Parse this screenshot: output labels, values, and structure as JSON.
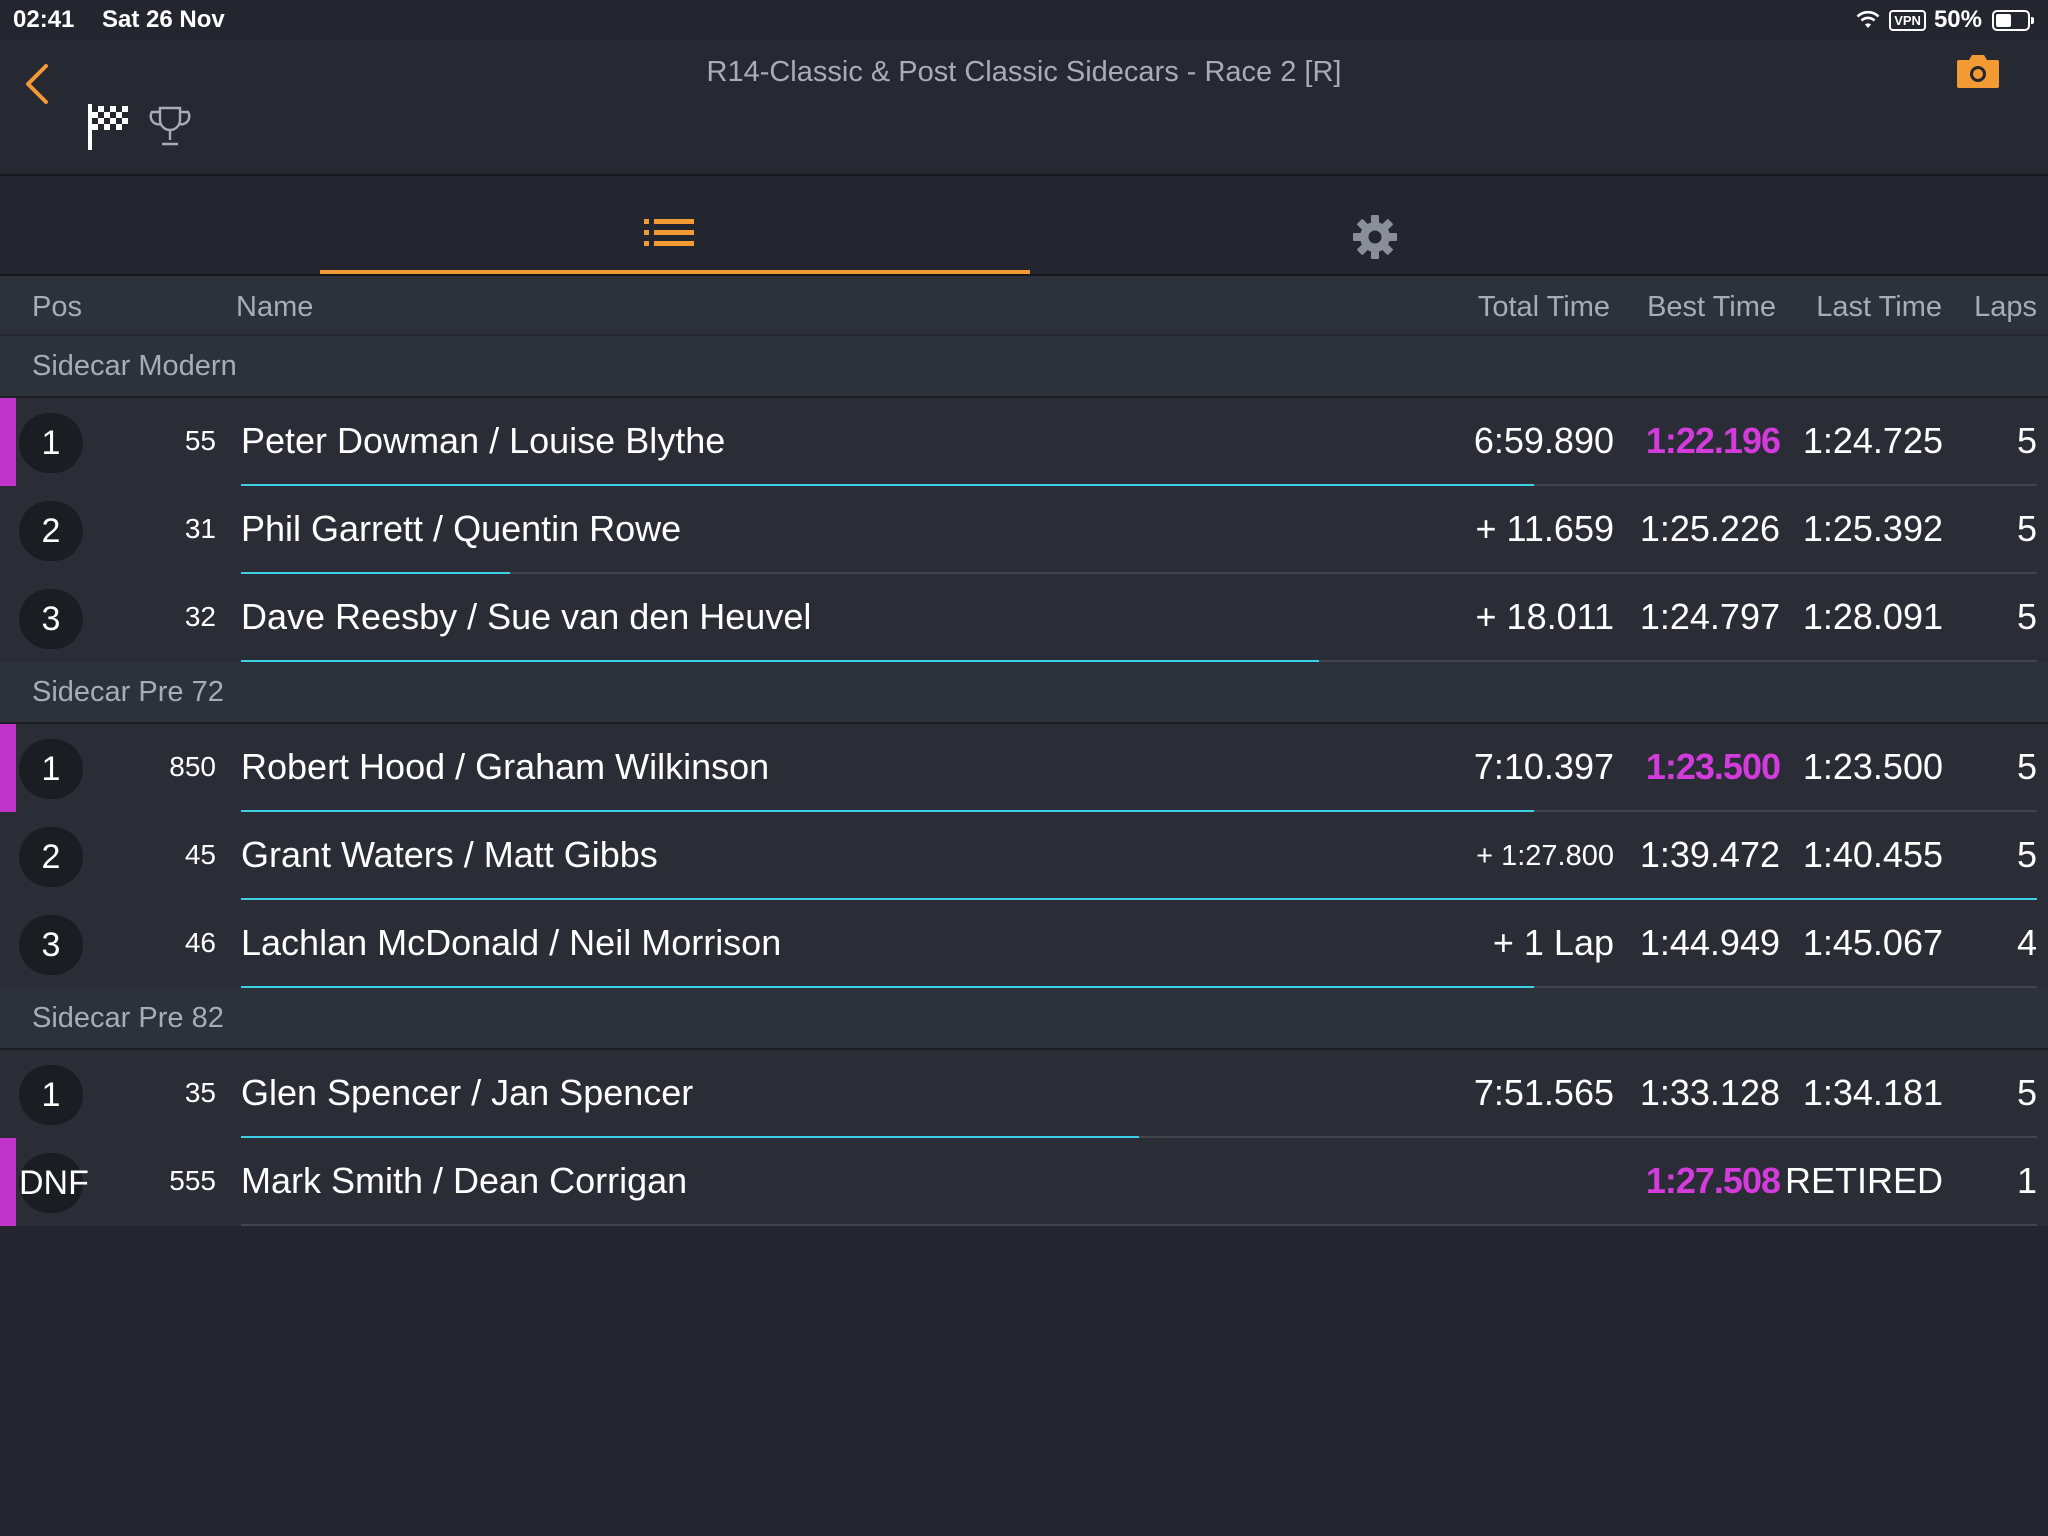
{
  "status_bar": {
    "time": "02:41",
    "date": "Sat 26 Nov",
    "vpn": "VPN",
    "battery": "50%"
  },
  "header": {
    "title": "R14-Classic & Post Classic Sidecars - Race 2 [R]"
  },
  "colors": {
    "accent": "#f39a34",
    "fastest": "#d43bdc",
    "progress": "#3ad1e8",
    "background": "#23262e"
  },
  "columns": {
    "pos": "Pos",
    "name": "Name",
    "total": "Total Time",
    "best": "Best Time",
    "last": "Last Time",
    "laps": "Laps"
  },
  "groups": [
    {
      "label": "Sidecar Modern",
      "rows": [
        {
          "pos": "1",
          "num": "55",
          "name": "Peter Dowman / Louise Blythe",
          "total": "6:59.890",
          "best": "1:22.196",
          "last": "1:24.725",
          "laps": "5",
          "leader": true,
          "fastest": true,
          "progress": 0.72
        },
        {
          "pos": "2",
          "num": "31",
          "name": "Phil Garrett / Quentin Rowe",
          "total": "+ 11.659",
          "best": "1:25.226",
          "last": "1:25.392",
          "laps": "5",
          "leader": false,
          "fastest": false,
          "progress": 0.15
        },
        {
          "pos": "3",
          "num": "32",
          "name": "Dave Reesby / Sue van den Heuvel",
          "total": "+ 18.011",
          "best": "1:24.797",
          "last": "1:28.091",
          "laps": "5",
          "leader": false,
          "fastest": false,
          "progress": 0.6
        }
      ]
    },
    {
      "label": "Sidecar Pre 72",
      "rows": [
        {
          "pos": "1",
          "num": "850",
          "name": "Robert Hood / Graham Wilkinson",
          "total": "7:10.397",
          "best": "1:23.500",
          "last": "1:23.500",
          "laps": "5",
          "leader": true,
          "fastest": true,
          "progress": 0.72
        },
        {
          "pos": "2",
          "num": "45",
          "name": "Grant Waters / Matt Gibbs",
          "total": "+ 1:27.800",
          "best": "1:39.472",
          "last": "1:40.455",
          "laps": "5",
          "leader": false,
          "fastest": false,
          "progress": 1.0,
          "small_total": true
        },
        {
          "pos": "3",
          "num": "46",
          "name": "Lachlan McDonald / Neil Morrison",
          "total": "+ 1 Lap",
          "best": "1:44.949",
          "last": "1:45.067",
          "laps": "4",
          "leader": false,
          "fastest": false,
          "progress": 0.72
        }
      ]
    },
    {
      "label": "Sidecar Pre 82",
      "rows": [
        {
          "pos": "1",
          "num": "35",
          "name": "Glen Spencer / Jan Spencer",
          "total": "7:51.565",
          "best": "1:33.128",
          "last": "1:34.181",
          "laps": "5",
          "leader": false,
          "fastest": false,
          "progress": 0.5
        },
        {
          "pos": "DNF",
          "num": "555",
          "name": "Mark Smith / Dean Corrigan",
          "total": "",
          "best": "1:27.508",
          "last": "RETIRED",
          "laps": "1",
          "leader": true,
          "fastest": true,
          "progress": 0
        }
      ]
    }
  ]
}
